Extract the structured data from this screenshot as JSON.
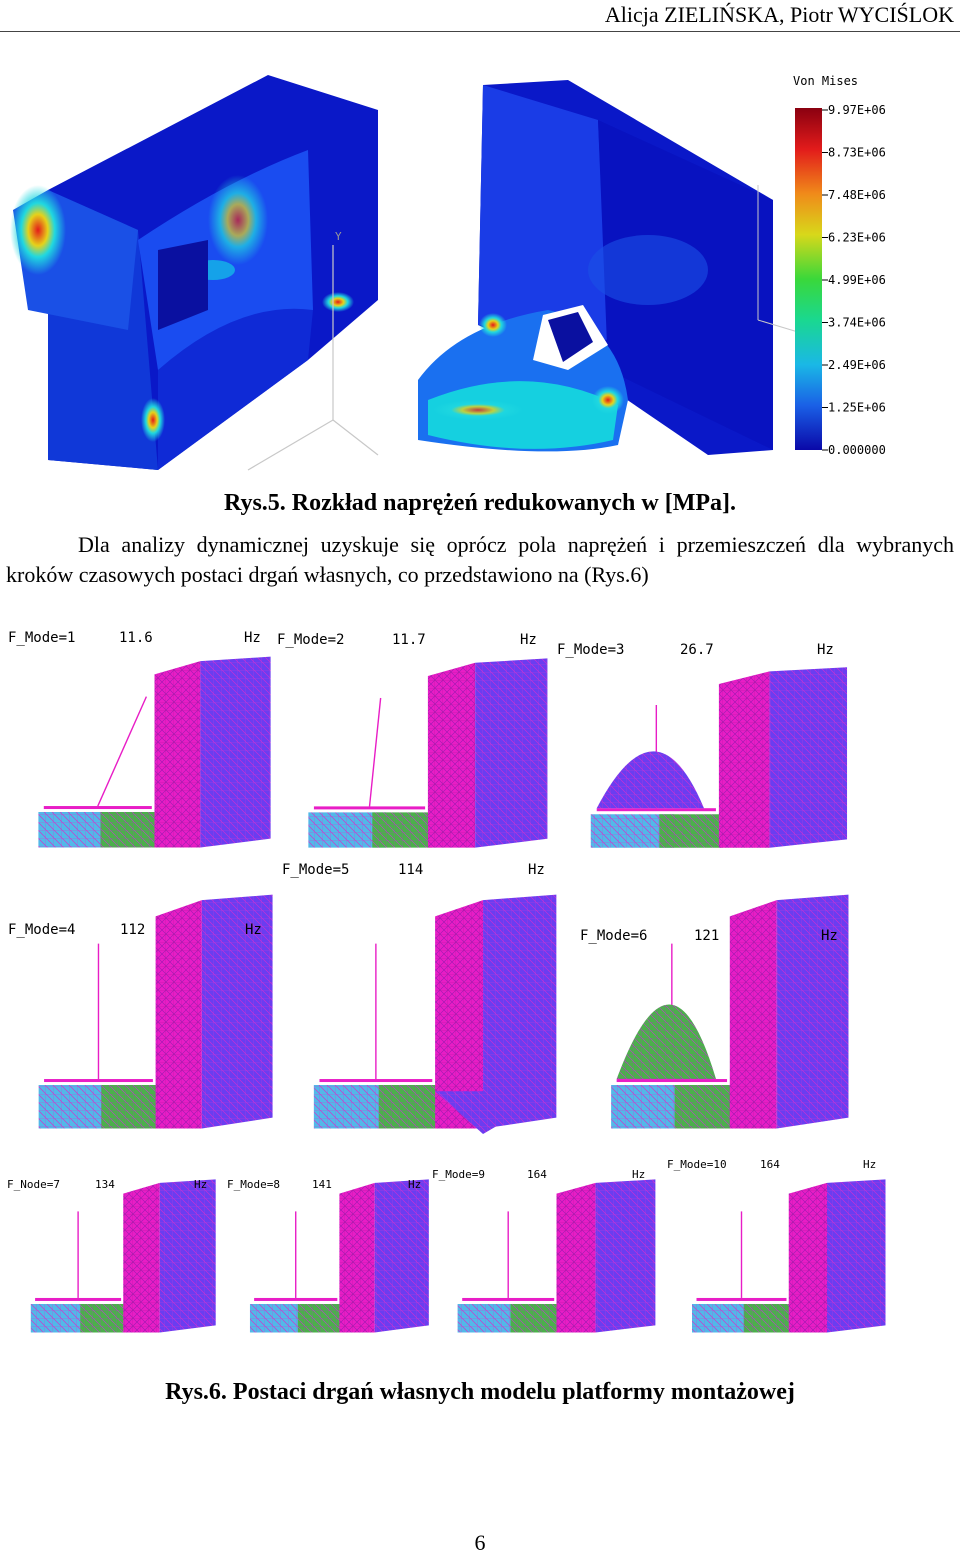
{
  "header": {
    "authors": "Alicja ZIELIŃSKA, Piotr WYCIŚLOK"
  },
  "figure5": {
    "legend_title": "Von Mises",
    "legend_values": [
      "9.97E+06",
      "8.73E+06",
      "7.48E+06",
      "6.23E+06",
      "4.99E+06",
      "3.74E+06",
      "2.49E+06",
      "1.25E+06",
      "0.000000"
    ],
    "axis_label": "Y",
    "caption": "Rys.5. Rozkład naprężeń redukowanych w [MPa].",
    "colors": {
      "low": "#0a10c8",
      "mid": "#17d5e6",
      "high": "#e41a1a"
    }
  },
  "paragraph": "Dla analizy dynamicznej uzyskuje się oprócz pola naprężeń i przemieszczeń dla wybranych kroków czasowych postaci drgań własnych, co przedstawiono na (Rys.6)",
  "figure6": {
    "modes": [
      {
        "name": "F_Mode=1",
        "freq": "11.6",
        "unit": "Hz"
      },
      {
        "name": "F_Mode=2",
        "freq": "11.7",
        "unit": "Hz"
      },
      {
        "name": "F_Mode=3",
        "freq": "26.7",
        "unit": "Hz"
      },
      {
        "name": "F_Mode=4",
        "freq": "112",
        "unit": "Hz"
      },
      {
        "name": "F_Mode=5",
        "freq": "114",
        "unit": "Hz"
      },
      {
        "name": "F_Mode=6",
        "freq": "121",
        "unit": "Hz"
      },
      {
        "name": "F_Node=7",
        "freq": "134",
        "unit": "Hz"
      },
      {
        "name": "F_Mode=8",
        "freq": "141",
        "unit": "Hz"
      },
      {
        "name": "F_Mode=9",
        "freq": "164",
        "unit": "Hz"
      },
      {
        "name": "F_Mode=10",
        "freq": "164",
        "unit": "Hz"
      }
    ],
    "caption": "Rys.6. Postaci drgań własnych modelu platformy montażowej",
    "colors": {
      "magenta": "#e81dc6",
      "violet": "#6b3df0",
      "teal": "#3fb4c8",
      "green": "#4bb04b"
    }
  },
  "page_number": "6"
}
